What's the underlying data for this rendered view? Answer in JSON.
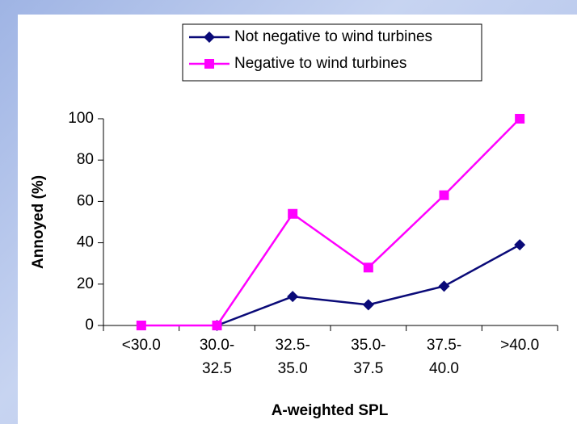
{
  "chart_data": {
    "type": "line",
    "xlabel": "A-weighted SPL",
    "ylabel": "Annoyed (%)",
    "categories": [
      "<30.0",
      "30.0-\n32.5",
      "32.5-\n35.0",
      "35.0-\n37.5",
      "37.5-\n40.0",
      ">40.0"
    ],
    "series": [
      {
        "name": "Not negative to wind turbines",
        "color": "#0a0a78",
        "marker": "diamond",
        "values": [
          null,
          0,
          14,
          10,
          19,
          39
        ]
      },
      {
        "name": "Negative to wind turbines",
        "color": "#ff00ff",
        "marker": "square",
        "values": [
          0,
          0,
          54,
          28,
          63,
          100
        ]
      }
    ],
    "ylim": [
      0,
      100
    ],
    "yticks": [
      0,
      20,
      40,
      60,
      80,
      100
    ]
  }
}
